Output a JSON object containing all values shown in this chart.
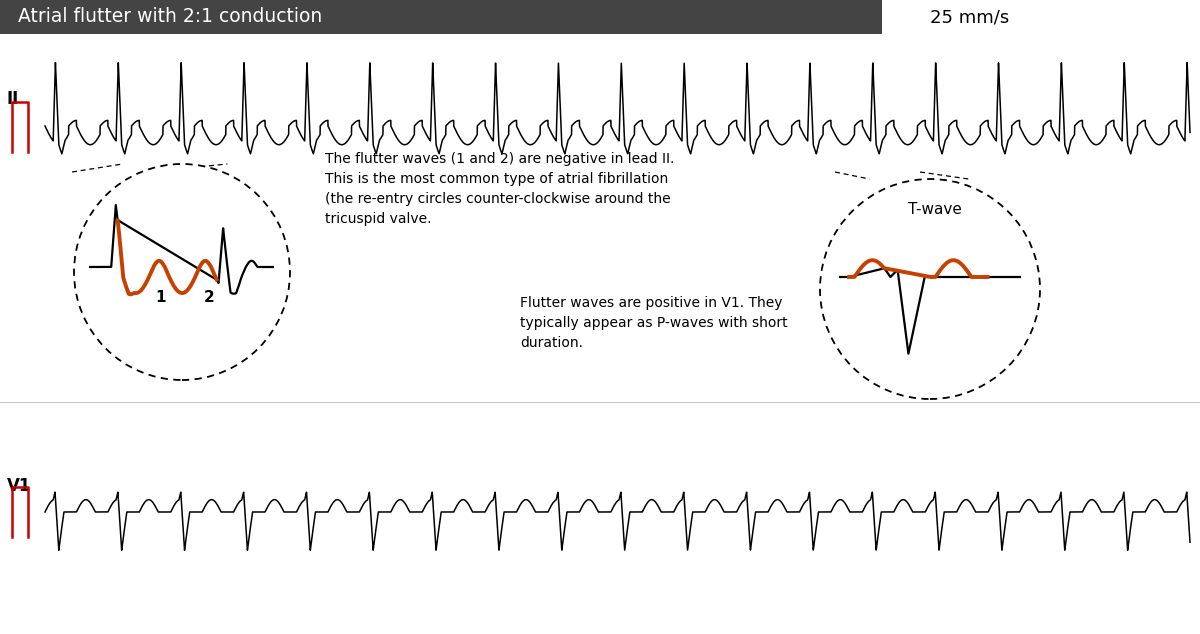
{
  "title": "Atrial flutter with 2:1 conduction",
  "title_bg": "#444444",
  "title_color": "#ffffff",
  "speed_text": "25 mm/s",
  "lead_II_label": "II",
  "lead_V1_label": "V1",
  "cal_color": "#cc0000",
  "text1": "The flutter waves (1 and 2) are negative in lead II.\nThis is the most common type of atrial fibrillation\n(the re-entry circles counter-clockwise around the\ntricuspid valve.",
  "text2": "Flutter waves are positive in V1. They\ntypically appear as P-waves with short\nduration.",
  "text3": "T-wave",
  "annotation_color": "#c84000",
  "bg_color": "#ffffff",
  "ecg_color": "#000000",
  "fig_width": 12.0,
  "fig_height": 6.34,
  "dpi": 100
}
